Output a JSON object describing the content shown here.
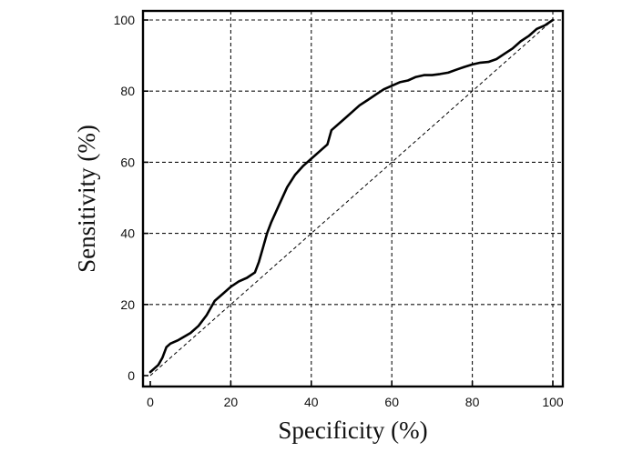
{
  "chart_data": {
    "type": "line",
    "xlabel": "Specificity (%)",
    "ylabel": "Sensitivity (%)",
    "xlim": [
      0,
      100
    ],
    "ylim": [
      0,
      100
    ],
    "x_ticks": [
      0,
      20,
      40,
      60,
      80,
      100
    ],
    "y_ticks": [
      0,
      20,
      40,
      60,
      80,
      100
    ],
    "grid": true,
    "series": [
      {
        "style": "solid",
        "x": [
          0,
          1,
          2,
          3,
          4,
          5,
          7,
          10,
          12,
          14,
          16,
          18,
          20,
          22,
          24,
          26,
          27,
          28,
          29,
          30,
          32,
          34,
          36,
          38,
          40,
          42,
          44,
          45,
          46,
          48,
          50,
          52,
          54,
          56,
          58,
          60,
          62,
          64,
          66,
          68,
          70,
          72,
          74,
          76,
          78,
          80,
          82,
          84,
          86,
          88,
          90,
          92,
          94,
          96,
          98,
          100
        ],
        "y": [
          1,
          2,
          3,
          5,
          8,
          9,
          10,
          12,
          14,
          17,
          21,
          23,
          25,
          26.5,
          27.5,
          29,
          32,
          36,
          40,
          43,
          48,
          53,
          56.5,
          59,
          61,
          63,
          65,
          69,
          70,
          72,
          74,
          76,
          77.5,
          79,
          80.5,
          81.5,
          82.5,
          83,
          84,
          84.5,
          84.5,
          84.8,
          85.2,
          86,
          86.8,
          87.5,
          88,
          88.2,
          89,
          90.5,
          92,
          94,
          95.5,
          97.5,
          98.5,
          100
        ]
      },
      {
        "style": "dashed",
        "x": [
          0,
          100
        ],
        "y": [
          0,
          100
        ]
      }
    ]
  }
}
